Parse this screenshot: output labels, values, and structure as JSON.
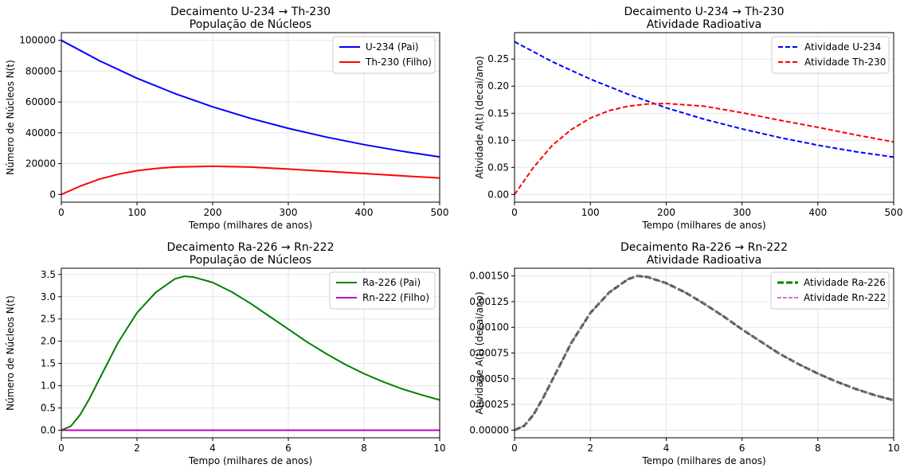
{
  "chart_data": [
    {
      "type": "line",
      "title": "Decaimento U-234 → Th-230",
      "subtitle": "População de Núcleos",
      "xlabel": "Tempo (milhares de anos)",
      "ylabel": "Número de Núcleos N(t)",
      "xlim": [
        0,
        500
      ],
      "ylim": [
        -5000,
        105000
      ],
      "xticks": [
        0,
        100,
        200,
        300,
        400,
        500
      ],
      "yticks": [
        0,
        20000,
        40000,
        60000,
        80000,
        100000
      ],
      "xtick_labels": [
        "0",
        "100",
        "200",
        "300",
        "400",
        "500"
      ],
      "ytick_labels": [
        "0",
        "20000",
        "40000",
        "60000",
        "80000",
        "100000"
      ],
      "grid": true,
      "legend_position": "top-right",
      "series": [
        {
          "name": "U-234 (Pai)",
          "color": "#0000ff",
          "dash": "solid",
          "x": [
            0,
            50,
            100,
            150,
            200,
            250,
            300,
            350,
            400,
            450,
            500
          ],
          "y": [
            100000,
            86840,
            75410,
            65490,
            56870,
            49390,
            42890,
            37250,
            32350,
            28090,
            24390
          ]
        },
        {
          "name": "Th-230 (Filho)",
          "color": "#ff0000",
          "dash": "solid",
          "x": [
            0,
            25,
            50,
            75,
            100,
            125,
            150,
            200,
            250,
            300,
            350,
            400,
            450,
            500
          ],
          "y": [
            0,
            5400,
            9900,
            13100,
            15400,
            16900,
            17800,
            18300,
            17800,
            16500,
            15000,
            13600,
            12100,
            10700
          ]
        }
      ]
    },
    {
      "type": "line",
      "title": "Decaimento U-234 → Th-230",
      "subtitle": "Atividade Radioativa",
      "xlabel": "Tempo (milhares de anos)",
      "ylabel": "Atividade A(t) (decai/ano)",
      "xlim": [
        0,
        500
      ],
      "ylim": [
        -0.0142,
        0.2988
      ],
      "xticks": [
        0,
        100,
        200,
        300,
        400,
        500
      ],
      "yticks": [
        0,
        0.05,
        0.1,
        0.15,
        0.2,
        0.25
      ],
      "xtick_labels": [
        "0",
        "100",
        "200",
        "300",
        "400",
        "500"
      ],
      "ytick_labels": [
        "0.00",
        "0.05",
        "0.10",
        "0.15",
        "0.20",
        "0.25"
      ],
      "grid": true,
      "legend_position": "top-right",
      "series": [
        {
          "name": "Atividade U-234",
          "color": "#0000ff",
          "dash": "dashed",
          "x": [
            0,
            50,
            100,
            150,
            200,
            250,
            300,
            350,
            400,
            450,
            500
          ],
          "y": [
            0.282,
            0.245,
            0.213,
            0.185,
            0.16,
            0.139,
            0.121,
            0.105,
            0.091,
            0.079,
            0.069
          ]
        },
        {
          "name": "Atividade Th-230",
          "color": "#ff0000",
          "dash": "dashed",
          "x": [
            0,
            25,
            50,
            75,
            100,
            125,
            150,
            175,
            200,
            250,
            300,
            350,
            400,
            450,
            500
          ],
          "y": [
            0,
            0.05,
            0.091,
            0.12,
            0.141,
            0.155,
            0.163,
            0.167,
            0.168,
            0.163,
            0.151,
            0.137,
            0.124,
            0.11,
            0.097
          ]
        }
      ]
    },
    {
      "type": "line",
      "title": "Decaimento Ra-226 → Rn-222",
      "subtitle": "População de Núcleos",
      "xlabel": "Tempo (milhares de anos)",
      "ylabel": "Número de Núcleos N(t)",
      "xlim": [
        0,
        10
      ],
      "ylim": [
        -0.17,
        3.64
      ],
      "xticks": [
        0,
        2,
        4,
        6,
        8,
        10
      ],
      "yticks": [
        0,
        0.5,
        1.0,
        1.5,
        2.0,
        2.5,
        3.0,
        3.5
      ],
      "xtick_labels": [
        "0",
        "2",
        "4",
        "6",
        "8",
        "10"
      ],
      "ytick_labels": [
        "0.0",
        "0.5",
        "1.0",
        "1.5",
        "2.0",
        "2.5",
        "3.0",
        "3.5"
      ],
      "grid": true,
      "legend_position": "top-right",
      "series": [
        {
          "name": "Ra-226 (Pai)",
          "color": "#008000",
          "dash": "solid",
          "x": [
            0,
            0.25,
            0.5,
            0.75,
            1,
            1.5,
            2,
            2.5,
            3,
            3.25,
            3.5,
            4,
            4.5,
            5,
            5.5,
            6,
            6.5,
            7,
            7.5,
            8,
            8.5,
            9,
            9.5,
            10
          ],
          "y": [
            0,
            0.09,
            0.35,
            0.72,
            1.14,
            1.97,
            2.64,
            3.1,
            3.4,
            3.46,
            3.44,
            3.32,
            3.11,
            2.85,
            2.56,
            2.27,
            1.98,
            1.72,
            1.48,
            1.27,
            1.09,
            0.93,
            0.8,
            0.68
          ]
        },
        {
          "name": "Rn-222 (Filho)",
          "color": "#c000c0",
          "dash": "solid",
          "x": [
            0,
            10
          ],
          "y": [
            0,
            0
          ]
        }
      ]
    },
    {
      "type": "line",
      "title": "Decaimento Ra-226 → Rn-222",
      "subtitle": "Atividade Radioativa",
      "xlabel": "Tempo (milhares de anos)",
      "ylabel": "Atividade A(t) (decai/ano)",
      "xlim": [
        0,
        10
      ],
      "ylim": [
        -7.5e-05,
        0.001575
      ],
      "xticks": [
        0,
        2,
        4,
        6,
        8,
        10
      ],
      "yticks": [
        0,
        0.00025,
        0.0005,
        0.00075,
        0.001,
        0.00125,
        0.0015
      ],
      "xtick_labels": [
        "0",
        "2",
        "4",
        "6",
        "8",
        "10"
      ],
      "ytick_labels": [
        "0.00000",
        "0.00025",
        "0.00050",
        "0.00075",
        "0.00100",
        "0.00125",
        "0.00150"
      ],
      "grid": true,
      "legend_position": "top-right",
      "series": [
        {
          "name": "Atividade Ra-226",
          "color": "#008000",
          "dash": "dashed-thick",
          "x": [
            0,
            0.25,
            0.5,
            0.75,
            1,
            1.5,
            2,
            2.5,
            3,
            3.25,
            3.5,
            4,
            4.5,
            5,
            5.5,
            6,
            6.5,
            7,
            7.5,
            8,
            8.5,
            9,
            9.5,
            10
          ],
          "y": [
            0,
            4e-05,
            0.00015,
            0.00031,
            0.00049,
            0.00085,
            0.00114,
            0.00134,
            0.00147,
            0.0015,
            0.00149,
            0.00143,
            0.00134,
            0.00123,
            0.00111,
            0.00098,
            0.00086,
            0.00074,
            0.00064,
            0.00055,
            0.00047,
            0.0004,
            0.00034,
            0.00029
          ]
        },
        {
          "name": "Atividade Rn-222",
          "color": "#d040d0",
          "dash": "dashed-thin",
          "x": [
            0,
            0.25,
            0.5,
            0.75,
            1,
            1.5,
            2,
            2.5,
            3,
            3.25,
            3.5,
            4,
            4.5,
            5,
            5.5,
            6,
            6.5,
            7,
            7.5,
            8,
            8.5,
            9,
            9.5,
            10
          ],
          "y": [
            0,
            4e-05,
            0.00015,
            0.00031,
            0.00049,
            0.00085,
            0.00114,
            0.00134,
            0.00147,
            0.0015,
            0.00149,
            0.00143,
            0.00134,
            0.00123,
            0.00111,
            0.00098,
            0.00086,
            0.00074,
            0.00064,
            0.00055,
            0.00047,
            0.0004,
            0.00034,
            0.00029
          ]
        }
      ]
    }
  ]
}
